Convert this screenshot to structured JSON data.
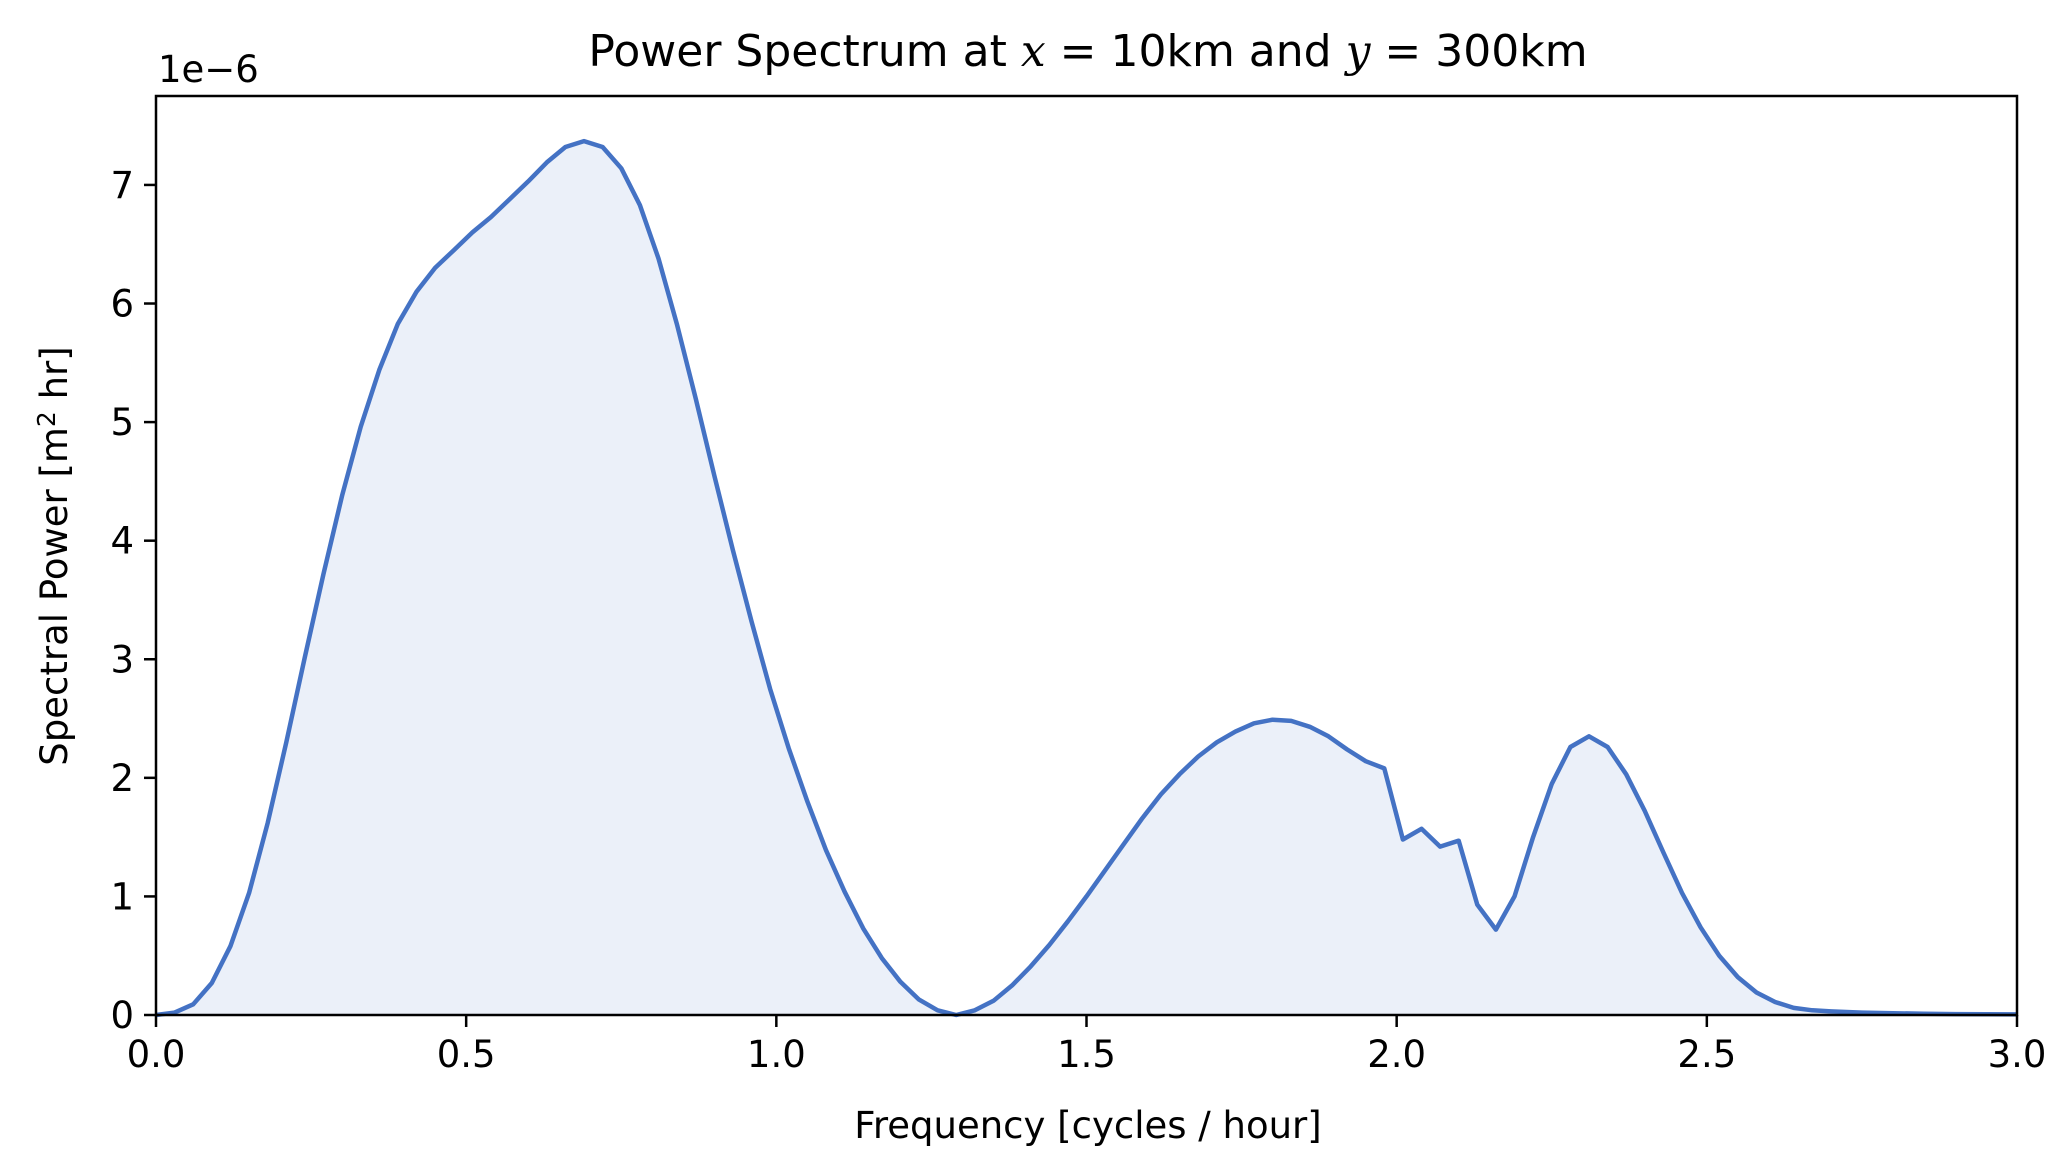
{
  "chart_data": {
    "type": "area",
    "title_prefix": "Power Spectrum at ",
    "title_x_var": "x",
    "title_x_value": " = 10km and ",
    "title_y_var": "y",
    "title_y_value": " = 300km",
    "xlabel": "Frequency [cycles / hour]",
    "ylabel_base": "Spectral Power [m",
    "ylabel_sup": "2",
    "ylabel_tail": " hr]",
    "offset_label": "1e−6",
    "xlim": [
      0.0,
      3.0
    ],
    "ylim": [
      0.0,
      7.75
    ],
    "x_ticks": [
      0.0,
      0.5,
      1.0,
      1.5,
      2.0,
      2.5,
      3.0
    ],
    "x_tick_labels": [
      "0.0",
      "0.5",
      "1.0",
      "1.5",
      "2.0",
      "2.5",
      "3.0"
    ],
    "y_ticks": [
      0,
      1,
      2,
      3,
      4,
      5,
      6,
      7
    ],
    "y_tick_labels": [
      "0",
      "1",
      "2",
      "3",
      "4",
      "5",
      "6",
      "7"
    ],
    "grid": false,
    "line_color": "#4472c4",
    "fill_color": "#ebf0f9",
    "x": [
      0.0,
      0.03,
      0.06,
      0.09,
      0.12,
      0.15,
      0.18,
      0.21,
      0.24,
      0.27,
      0.3,
      0.33,
      0.36,
      0.39,
      0.42,
      0.45,
      0.48,
      0.51,
      0.54,
      0.57,
      0.6,
      0.63,
      0.66,
      0.69,
      0.72,
      0.75,
      0.78,
      0.81,
      0.84,
      0.87,
      0.9,
      0.93,
      0.96,
      0.99,
      1.02,
      1.05,
      1.08,
      1.11,
      1.14,
      1.17,
      1.2,
      1.23,
      1.26,
      1.29,
      1.32,
      1.35,
      1.38,
      1.41,
      1.44,
      1.47,
      1.5,
      1.53,
      1.56,
      1.59,
      1.62,
      1.65,
      1.68,
      1.71,
      1.74,
      1.77,
      1.8,
      1.83,
      1.86,
      1.89,
      1.92,
      1.95,
      1.98,
      2.01,
      2.04,
      2.07,
      2.1,
      2.13,
      2.16,
      2.19,
      2.22,
      2.25,
      2.28,
      2.31,
      2.34,
      2.37,
      2.4,
      2.43,
      2.46,
      2.49,
      2.52,
      2.55,
      2.58,
      2.61,
      2.64,
      2.67,
      2.7,
      2.75,
      2.8,
      2.85,
      2.9,
      2.95,
      3.0
    ],
    "y": [
      0.0,
      0.02,
      0.09,
      0.27,
      0.58,
      1.03,
      1.62,
      2.3,
      3.02,
      3.72,
      4.38,
      4.96,
      5.44,
      5.83,
      6.1,
      6.3,
      6.45,
      6.6,
      6.73,
      6.88,
      7.03,
      7.19,
      7.32,
      7.37,
      7.32,
      7.14,
      6.83,
      6.38,
      5.82,
      5.2,
      4.55,
      3.92,
      3.32,
      2.75,
      2.25,
      1.8,
      1.39,
      1.04,
      0.73,
      0.48,
      0.28,
      0.13,
      0.04,
      0.0,
      0.04,
      0.12,
      0.25,
      0.41,
      0.59,
      0.79,
      1.0,
      1.22,
      1.44,
      1.66,
      1.86,
      2.03,
      2.18,
      2.3,
      2.39,
      2.46,
      2.49,
      2.48,
      2.43,
      2.35,
      2.24,
      2.14,
      2.08,
      1.48,
      1.57,
      1.42,
      1.47,
      0.93,
      0.72,
      1.0,
      1.5,
      1.95,
      2.26,
      2.35,
      2.26,
      2.03,
      1.72,
      1.37,
      1.03,
      0.74,
      0.5,
      0.32,
      0.19,
      0.11,
      0.06,
      0.04,
      0.03,
      0.02,
      0.015,
      0.01,
      0.008,
      0.006,
      0.005
    ]
  }
}
